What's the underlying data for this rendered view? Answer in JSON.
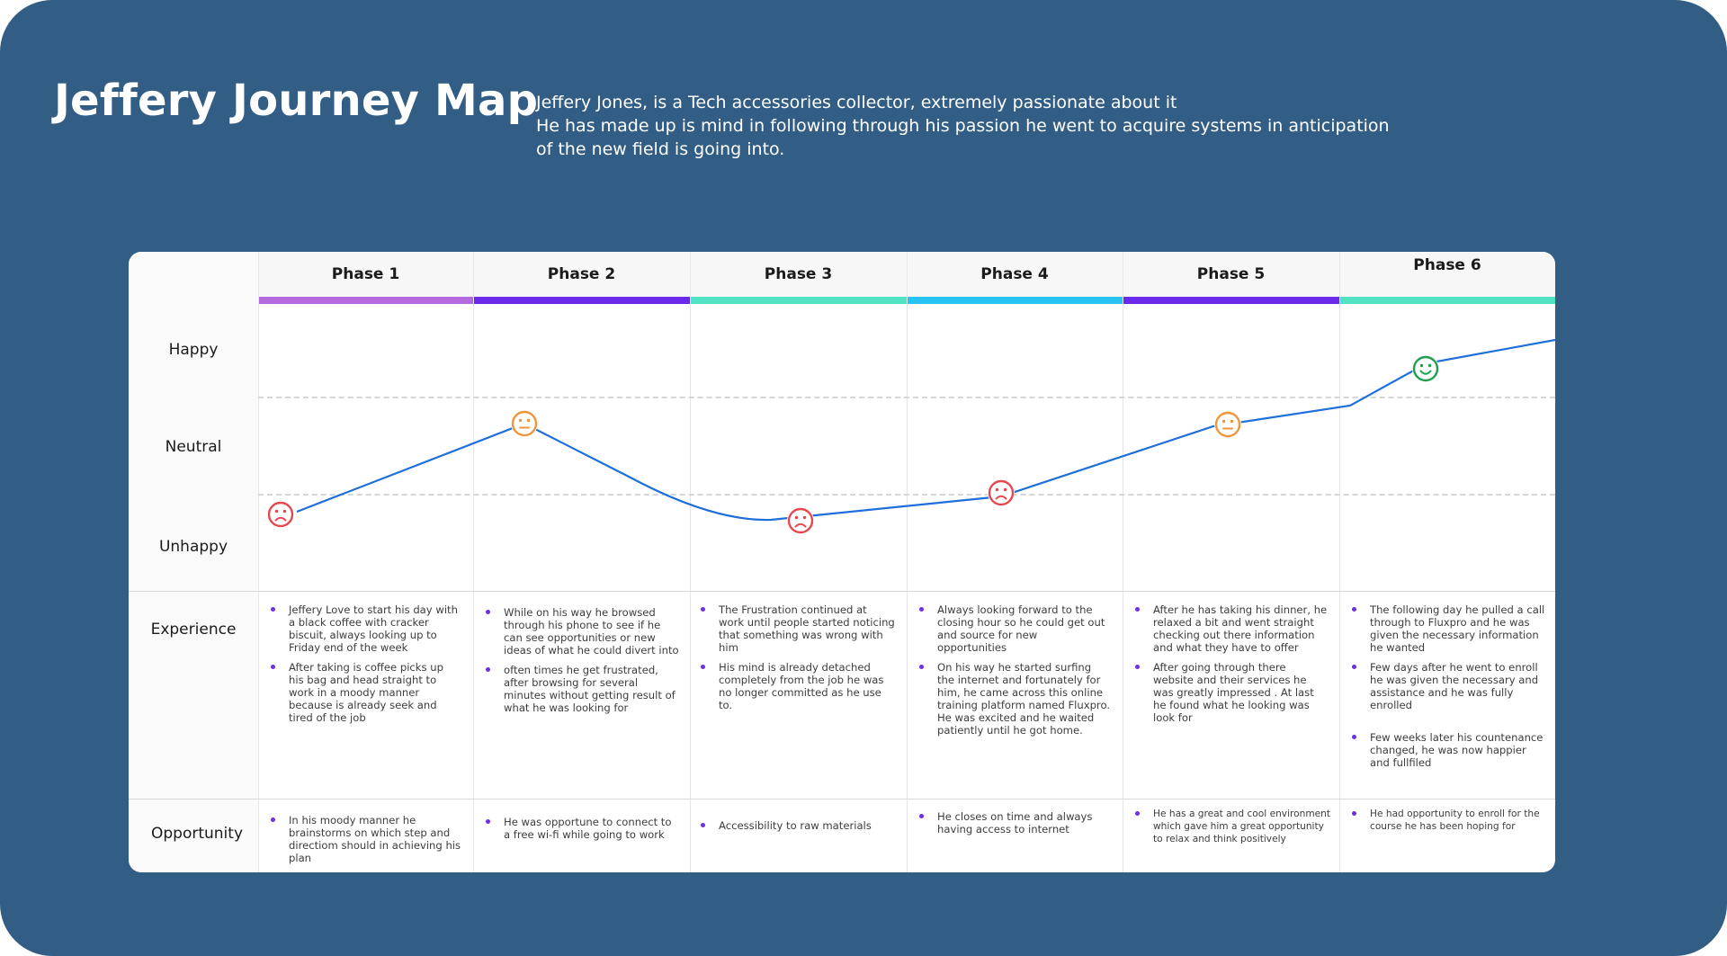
{
  "title": "Jeffery Journey Map",
  "intro": [
    "Jeffery Jones, is a Tech accessories collector, extremely passionate about it",
    "He has made up is mind in following through his passion he went to acquire systems in anticipation",
    " of the new field  is  going into."
  ],
  "emotion_levels": [
    "Happy",
    "Neutral",
    "Unhappy"
  ],
  "row_labels": {
    "experience": "Experience",
    "opportunity": "Opportunity"
  },
  "phases": [
    {
      "label": "Phase 1",
      "color": "#b56ae0",
      "emotion": "Unhappy",
      "emotion_icon": "sad-face-icon",
      "experience": [
        "Jeffery Love to start his day with a black coffee with cracker biscuit, always looking up to Friday end of the week",
        "After taking is coffee picks up his bag and head straight to work in a moody manner because is already seek and tired of the job"
      ],
      "opportunity": [
        "In his moody manner he brainstorms on which step and directiom should in achieving his plan"
      ]
    },
    {
      "label": "Phase 2",
      "color": "#6a2aec",
      "emotion": "Neutral",
      "emotion_icon": "neutral-face-icon",
      "experience": [
        "While on his way he browsed through his phone to see if he can see opportunities or new ideas of what he could divert into",
        "often times he get frustrated, after browsing for several minutes without getting result of what he was looking for"
      ],
      "opportunity": [
        "He was opportune to connect to a free wi-fi while going to work"
      ]
    },
    {
      "label": "Phase 3",
      "color": "#4fe3c4",
      "emotion": "Unhappy",
      "emotion_icon": "sad-face-icon",
      "experience": [
        "The Frustration continued at work until people started noticing that something was wrong with him",
        "His mind is already detached completely from the job he was no longer committed as he use to."
      ],
      "opportunity": [
        " Accessibility to raw materials"
      ]
    },
    {
      "label": "Phase 4",
      "color": "#27c3f5",
      "emotion": "Unhappy",
      "emotion_icon": "sad-face-icon",
      "experience": [
        "Always looking forward to the closing  hour so he could get out and source for new opportunities",
        "On his way he started surfing the internet and fortunately for him, he came across this online training platform named Fluxpro. He was excited and he waited patiently until he got home."
      ],
      "opportunity": [
        "He closes on time and always having access to internet"
      ]
    },
    {
      "label": "Phase 5",
      "color": "#6a2aec",
      "emotion": "Neutral",
      "emotion_icon": "neutral-face-icon",
      "experience": [
        "After he has taking his dinner, he relaxed a bit and went straight checking out there information and what they have to offer",
        "After going through there website and their services he was greatly impressed . At last he found what he looking was look for"
      ],
      "opportunity": [
        "He has a great and cool environment which gave him a great opportunity to relax and think positively"
      ]
    },
    {
      "label": "Phase 6",
      "color": "#4fe3c4",
      "emotion": "Happy",
      "emotion_icon": "happy-face-icon",
      "experience": [
        "The following day he pulled a call through to Fluxpro and he was given the necessary  information he wanted",
        "Few days after he went to enroll he was given the necessary and assistance and he was fully enrolled",
        "Few weeks later his countenance changed, he was now happier and fullfiled"
      ],
      "opportunity": [
        "He had opportunity to enroll for the course he has been hoping for"
      ]
    }
  ],
  "colors": {
    "background": "#325d84",
    "line": "#1e6fd9",
    "sad": "#e6484f",
    "neutral": "#f0953a",
    "happy": "#1e9e4e",
    "bullet": "#6a2fe6"
  }
}
